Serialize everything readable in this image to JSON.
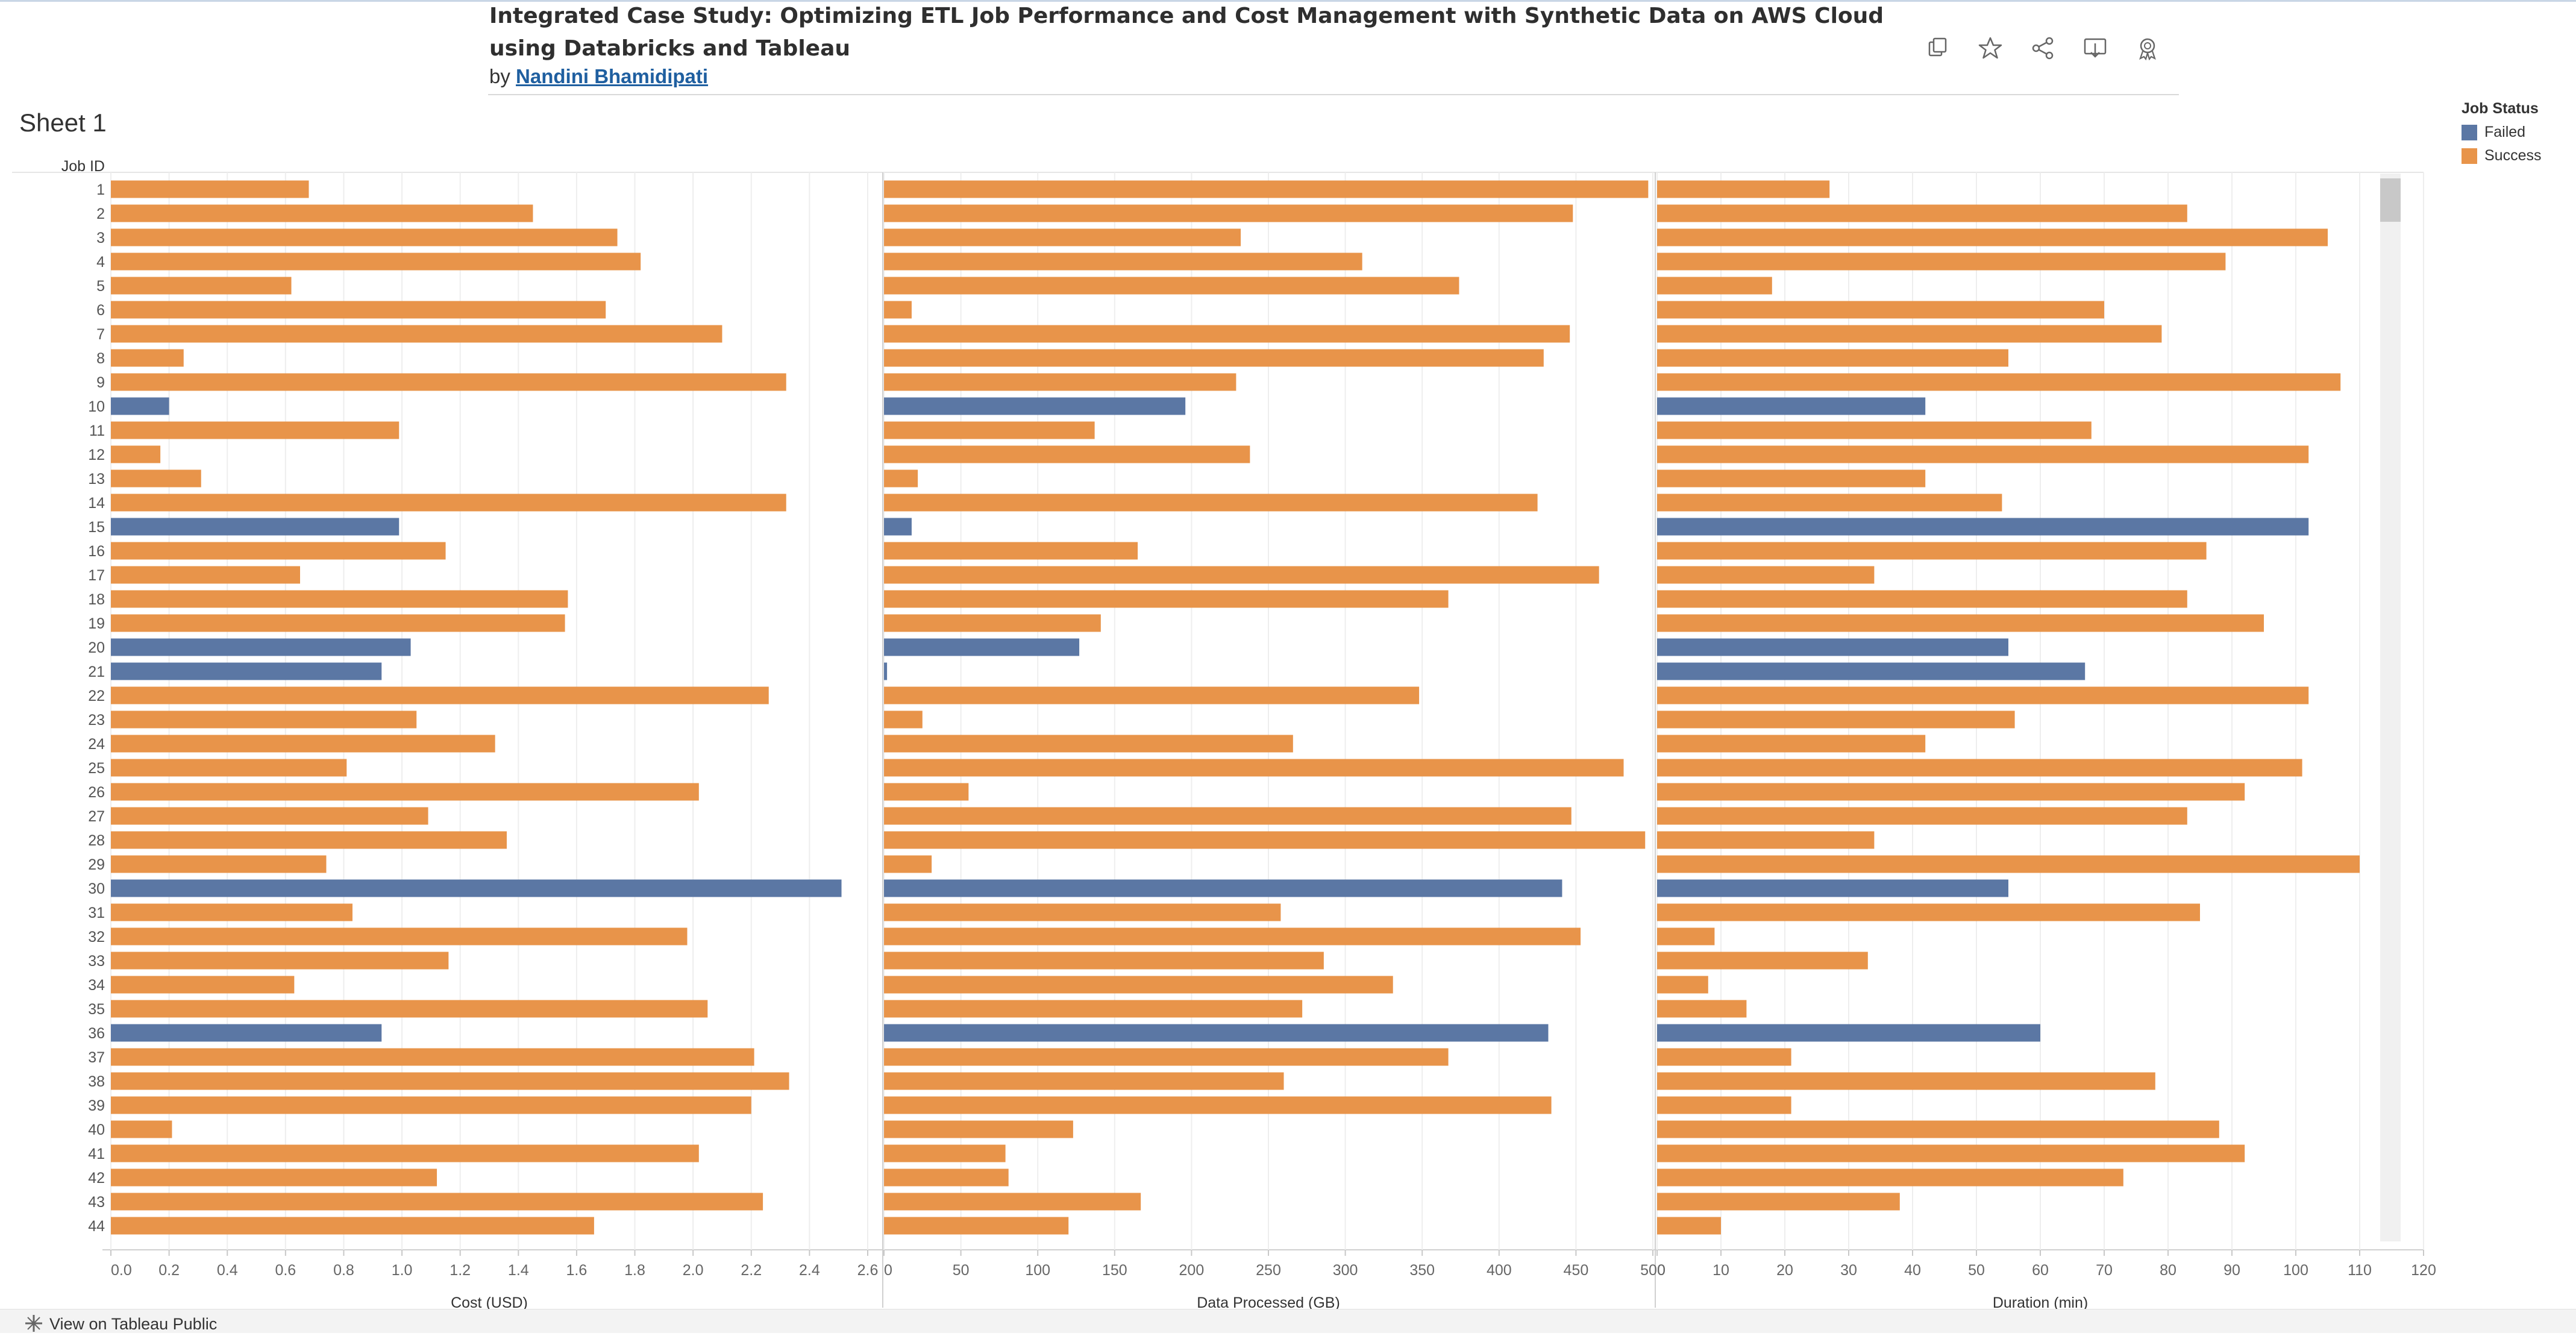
{
  "header": {
    "title": "Integrated Case Study: Optimizing ETL Job Performance and Cost Management with Synthetic Data on AWS Cloud using Databricks and Tableau",
    "by_label": "by",
    "author": "Nandini Bhamidipati"
  },
  "toolbar": {
    "icons": [
      "copy-icon",
      "star-icon",
      "share-icon",
      "download-icon",
      "badge-icon"
    ]
  },
  "sheet": {
    "title": "Sheet 1"
  },
  "footer": {
    "view_label": "View on Tableau Public"
  },
  "legend": {
    "title": "Job Status",
    "items": [
      {
        "label": "Failed",
        "color": "#5b77a4"
      },
      {
        "label": "Success",
        "color": "#e8944a"
      }
    ]
  },
  "chart_data": {
    "type": "bar",
    "orientation": "horizontal",
    "row_header": "Job ID",
    "categories": [
      "1",
      "2",
      "3",
      "4",
      "5",
      "6",
      "7",
      "8",
      "9",
      "10",
      "11",
      "12",
      "13",
      "14",
      "15",
      "16",
      "17",
      "18",
      "19",
      "20",
      "21",
      "22",
      "23",
      "24",
      "25",
      "26",
      "27",
      "28",
      "29",
      "30",
      "31",
      "32",
      "33",
      "34",
      "35",
      "36",
      "37",
      "38",
      "39",
      "40",
      "41",
      "42",
      "43",
      "44"
    ],
    "job_status": [
      "Success",
      "Success",
      "Success",
      "Success",
      "Success",
      "Success",
      "Success",
      "Success",
      "Success",
      "Failed",
      "Success",
      "Success",
      "Success",
      "Success",
      "Failed",
      "Success",
      "Success",
      "Success",
      "Success",
      "Failed",
      "Failed",
      "Success",
      "Success",
      "Success",
      "Success",
      "Success",
      "Success",
      "Success",
      "Success",
      "Failed",
      "Success",
      "Success",
      "Success",
      "Success",
      "Success",
      "Failed",
      "Success",
      "Success",
      "Success",
      "Success",
      "Success",
      "Success",
      "Success",
      "Success"
    ],
    "colors": {
      "Failed": "#5b77a4",
      "Success": "#e8944a"
    },
    "grid": true,
    "panels": [
      {
        "xlabel": "Cost (USD)",
        "xlim": [
          0,
          2.6
        ],
        "ticks": [
          "0.0",
          "0.2",
          "0.4",
          "0.6",
          "0.8",
          "1.0",
          "1.2",
          "1.4",
          "1.6",
          "1.8",
          "2.0",
          "2.2",
          "2.4",
          "2.6"
        ],
        "values": [
          0.68,
          1.45,
          1.74,
          1.82,
          0.62,
          1.7,
          2.1,
          0.25,
          2.32,
          0.2,
          0.99,
          0.17,
          0.31,
          2.32,
          0.99,
          1.15,
          0.65,
          1.57,
          1.56,
          1.03,
          0.93,
          2.26,
          1.05,
          1.32,
          0.81,
          2.02,
          1.09,
          1.36,
          0.74,
          2.51,
          0.83,
          1.98,
          1.16,
          0.63,
          2.05,
          0.93,
          2.21,
          2.33,
          2.2,
          0.21,
          2.02,
          1.12,
          2.24,
          1.66
        ]
      },
      {
        "xlabel": "Data Processed (GB)",
        "xlim": [
          0,
          500
        ],
        "ticks": [
          "0",
          "50",
          "100",
          "150",
          "200",
          "250",
          "300",
          "350",
          "400",
          "450",
          "500"
        ],
        "values": [
          497,
          448,
          232,
          311,
          374,
          18,
          446,
          429,
          229,
          196,
          137,
          238,
          22,
          425,
          18,
          165,
          465,
          367,
          141,
          127,
          2,
          348,
          25,
          266,
          481,
          55,
          447,
          495,
          31,
          441,
          258,
          453,
          286,
          331,
          272,
          432,
          367,
          260,
          434,
          123,
          79,
          81,
          167,
          120
        ]
      },
      {
        "xlabel": "Duration (min)",
        "xlim": [
          0,
          120
        ],
        "ticks": [
          "0",
          "10",
          "20",
          "30",
          "40",
          "50",
          "60",
          "70",
          "80",
          "90",
          "100",
          "110",
          "120"
        ],
        "values": [
          27,
          83,
          105,
          89,
          18,
          70,
          79,
          55,
          107,
          42,
          68,
          102,
          42,
          54,
          102,
          86,
          34,
          83,
          95,
          55,
          67,
          102,
          56,
          42,
          101,
          92,
          83,
          34,
          110,
          55,
          85,
          9,
          33,
          8,
          14,
          60,
          21,
          78,
          21,
          88,
          92,
          73,
          38,
          10
        ]
      }
    ]
  }
}
